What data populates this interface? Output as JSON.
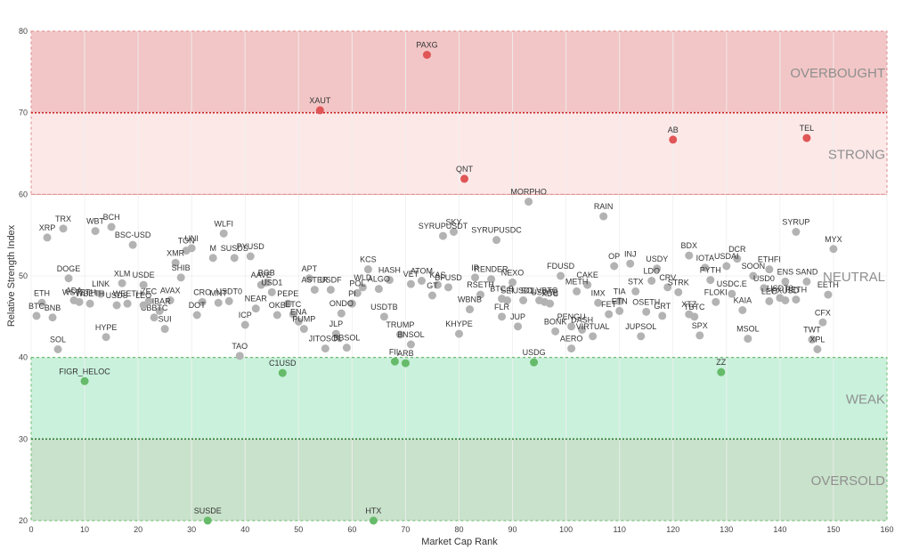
{
  "chart_data": {
    "type": "scatter",
    "title": "",
    "xlabel": "Market Cap Rank",
    "ylabel": "Relative Strength Index",
    "xlim": [
      0,
      160
    ],
    "ylim": [
      20,
      80
    ],
    "xticks": [
      0,
      10,
      20,
      30,
      40,
      50,
      60,
      70,
      80,
      90,
      100,
      110,
      120,
      130,
      140,
      150,
      160
    ],
    "yticks": [
      20,
      30,
      40,
      50,
      60,
      70,
      80
    ],
    "grid": true,
    "colors": {
      "overbought": "#e05555",
      "oversold": "#66bb6a",
      "neutral": "#b3b3b3",
      "overbought_band": "#f2c6c6",
      "strong_band": "#fde8e8",
      "weak_band": "#c9f1dc",
      "oversold_band": "#c9e2cb",
      "red_line": "#cc2222",
      "green_line": "#2e7d32"
    },
    "zones": [
      {
        "label": "OVERBOUGHT",
        "from": 70,
        "to": 80,
        "color": "#f2c6c6"
      },
      {
        "label": "STRONG",
        "from": 60,
        "to": 70,
        "color": "#fde8e8"
      },
      {
        "label": "NEUTRAL",
        "from": 40,
        "to": 60,
        "color": "#ffffff"
      },
      {
        "label": "WEAK",
        "from": 30,
        "to": 40,
        "color": "#c9f1dc"
      },
      {
        "label": "OVERSOLD",
        "from": 20,
        "to": 30,
        "color": "#c9e2cb"
      }
    ],
    "threshold_lines": [
      {
        "y": 70,
        "style": "dotted",
        "color": "#cc2222"
      },
      {
        "y": 60,
        "style": "dashed",
        "color": "#e08a8a"
      },
      {
        "y": 40,
        "style": "dashed",
        "color": "#66bb6a"
      },
      {
        "y": 30,
        "style": "dotted",
        "color": "#2e7d32"
      }
    ],
    "points": [
      {
        "label": "PAXG",
        "x": 74,
        "y": 77.1,
        "cat": "overbought"
      },
      {
        "label": "XAUT",
        "x": 54,
        "y": 70.3,
        "cat": "overbought"
      },
      {
        "label": "AB",
        "x": 120,
        "y": 66.7,
        "cat": "overbought"
      },
      {
        "label": "TEL",
        "x": 145,
        "y": 66.9,
        "cat": "overbought"
      },
      {
        "label": "QNT",
        "x": 81,
        "y": 61.9,
        "cat": "overbought"
      },
      {
        "label": "FIGR_HELOC",
        "x": 10,
        "y": 37.1,
        "cat": "oversold"
      },
      {
        "label": "C1USD",
        "x": 47,
        "y": 38.1,
        "cat": "oversold"
      },
      {
        "label": "FIL",
        "x": 68,
        "y": 39.5,
        "cat": "oversold"
      },
      {
        "label": "ARB",
        "x": 70,
        "y": 39.3,
        "cat": "oversold"
      },
      {
        "label": "USDG",
        "x": 94,
        "y": 39.4,
        "cat": "oversold"
      },
      {
        "label": "ZZ",
        "x": 129,
        "y": 38.2,
        "cat": "oversold"
      },
      {
        "label": "SUSDE",
        "x": 33,
        "y": 20.0,
        "cat": "oversold"
      },
      {
        "label": "HTX",
        "x": 64,
        "y": 20.0,
        "cat": "oversold"
      },
      {
        "label": "MORPHO",
        "x": 93,
        "y": 59.1,
        "cat": "neutral"
      },
      {
        "label": "RAIN",
        "x": 107,
        "y": 57.3,
        "cat": "neutral"
      },
      {
        "label": "TRX",
        "x": 6,
        "y": 55.8,
        "cat": "neutral"
      },
      {
        "label": "XRP",
        "x": 3,
        "y": 54.7,
        "cat": "neutral"
      },
      {
        "label": "WBT",
        "x": 12,
        "y": 55.5,
        "cat": "neutral"
      },
      {
        "label": "BCH",
        "x": 15,
        "y": 56.0,
        "cat": "neutral"
      },
      {
        "label": "BSC-USD",
        "x": 19,
        "y": 53.8,
        "cat": "neutral"
      },
      {
        "label": "WLFI",
        "x": 36,
        "y": 55.2,
        "cat": "neutral"
      },
      {
        "label": "UNI",
        "x": 30,
        "y": 53.4,
        "cat": "neutral"
      },
      {
        "label": "TON",
        "x": 29,
        "y": 53.1,
        "cat": "neutral"
      },
      {
        "label": "XMR",
        "x": 27,
        "y": 51.6,
        "cat": "neutral"
      },
      {
        "label": "M",
        "x": 34,
        "y": 52.2,
        "cat": "neutral"
      },
      {
        "label": "SUSDS",
        "x": 38,
        "y": 52.2,
        "cat": "neutral"
      },
      {
        "label": "PYUSD",
        "x": 41,
        "y": 52.4,
        "cat": "neutral"
      },
      {
        "label": "SHIB",
        "x": 28,
        "y": 49.8,
        "cat": "neutral"
      },
      {
        "label": "SKY",
        "x": 79,
        "y": 55.4,
        "cat": "neutral"
      },
      {
        "label": "SYRUPUSDT",
        "x": 77,
        "y": 54.9,
        "cat": "neutral"
      },
      {
        "label": "SYRUPUSDC",
        "x": 87,
        "y": 54.4,
        "cat": "neutral"
      },
      {
        "label": "SYRUP",
        "x": 143,
        "y": 55.4,
        "cat": "neutral"
      },
      {
        "label": "MYX",
        "x": 150,
        "y": 53.3,
        "cat": "neutral"
      },
      {
        "label": "BDX",
        "x": 123,
        "y": 52.5,
        "cat": "neutral"
      },
      {
        "label": "DCR",
        "x": 132,
        "y": 52.1,
        "cat": "neutral"
      },
      {
        "label": "USDAI",
        "x": 130,
        "y": 51.2,
        "cat": "neutral"
      },
      {
        "label": "ETHFI",
        "x": 138,
        "y": 50.8,
        "cat": "neutral"
      },
      {
        "label": "IOTA",
        "x": 126,
        "y": 51.0,
        "cat": "neutral"
      },
      {
        "label": "SOON",
        "x": 135,
        "y": 50.0,
        "cat": "neutral"
      },
      {
        "label": "OP",
        "x": 109,
        "y": 51.2,
        "cat": "neutral"
      },
      {
        "label": "INJ",
        "x": 112,
        "y": 51.5,
        "cat": "neutral"
      },
      {
        "label": "USDY",
        "x": 117,
        "y": 50.9,
        "cat": "neutral"
      },
      {
        "label": "PYTH",
        "x": 127,
        "y": 49.5,
        "cat": "neutral"
      },
      {
        "label": "ENS",
        "x": 141,
        "y": 49.3,
        "cat": "neutral"
      },
      {
        "label": "SAND",
        "x": 145,
        "y": 49.3,
        "cat": "neutral"
      },
      {
        "label": "USD0",
        "x": 137,
        "y": 48.5,
        "cat": "neutral"
      },
      {
        "label": "LDO",
        "x": 116,
        "y": 49.4,
        "cat": "neutral"
      },
      {
        "label": "CRV",
        "x": 119,
        "y": 48.6,
        "cat": "neutral"
      },
      {
        "label": "STX",
        "x": 113,
        "y": 48.1,
        "cat": "neutral"
      },
      {
        "label": "STRK",
        "x": 121,
        "y": 48.0,
        "cat": "neutral"
      },
      {
        "label": "EETH",
        "x": 149,
        "y": 47.7,
        "cat": "neutral"
      },
      {
        "label": "USDC.E",
        "x": 131,
        "y": 47.8,
        "cat": "neutral"
      },
      {
        "label": "FLOKI",
        "x": 128,
        "y": 46.8,
        "cat": "neutral"
      },
      {
        "label": "KAIA",
        "x": 133,
        "y": 45.8,
        "cat": "neutral"
      },
      {
        "label": "LEO",
        "x": 138,
        "y": 46.9,
        "cat": "neutral"
      },
      {
        "label": "USDT0",
        "x": 140,
        "y": 47.3,
        "cat": "neutral"
      },
      {
        "label": "FXUSD",
        "x": 141,
        "y": 47.0,
        "cat": "neutral"
      },
      {
        "label": "RETH",
        "x": 143,
        "y": 47.1,
        "cat": "neutral"
      },
      {
        "label": "TIA",
        "x": 110,
        "y": 46.9,
        "cat": "neutral"
      },
      {
        "label": "ETN",
        "x": 110,
        "y": 45.7,
        "cat": "neutral"
      },
      {
        "label": "OSETH",
        "x": 115,
        "y": 45.6,
        "cat": "neutral"
      },
      {
        "label": "GRT",
        "x": 118,
        "y": 45.1,
        "cat": "neutral"
      },
      {
        "label": "XTZ",
        "x": 123,
        "y": 45.3,
        "cat": "neutral"
      },
      {
        "label": "TBTC",
        "x": 124,
        "y": 45.0,
        "cat": "neutral"
      },
      {
        "label": "SPX",
        "x": 125,
        "y": 42.7,
        "cat": "neutral"
      },
      {
        "label": "MSOL",
        "x": 134,
        "y": 42.3,
        "cat": "neutral"
      },
      {
        "label": "CFX",
        "x": 148,
        "y": 44.3,
        "cat": "neutral"
      },
      {
        "label": "TWT",
        "x": 146,
        "y": 42.2,
        "cat": "neutral"
      },
      {
        "label": "XPL",
        "x": 147,
        "y": 41.0,
        "cat": "neutral"
      },
      {
        "label": "FDUSD",
        "x": 99,
        "y": 50.0,
        "cat": "neutral"
      },
      {
        "label": "CAKE",
        "x": 104,
        "y": 48.9,
        "cat": "neutral"
      },
      {
        "label": "METH",
        "x": 102,
        "y": 48.1,
        "cat": "neutral"
      },
      {
        "label": "IMX",
        "x": 106,
        "y": 46.7,
        "cat": "neutral"
      },
      {
        "label": "FET",
        "x": 108,
        "y": 45.3,
        "cat": "neutral"
      },
      {
        "label": "JUPSOL",
        "x": 114,
        "y": 42.6,
        "cat": "neutral"
      },
      {
        "label": "PENGU",
        "x": 101,
        "y": 43.8,
        "cat": "neutral"
      },
      {
        "label": "BONK",
        "x": 98,
        "y": 43.2,
        "cat": "neutral"
      },
      {
        "label": "DASH",
        "x": 103,
        "y": 43.4,
        "cat": "neutral"
      },
      {
        "label": "VIRTUAL",
        "x": 105,
        "y": 42.6,
        "cat": "neutral"
      },
      {
        "label": "AERO",
        "x": 101,
        "y": 41.1,
        "cat": "neutral"
      },
      {
        "label": "XDC",
        "x": 97,
        "y": 46.6,
        "cat": "neutral"
      },
      {
        "label": "SOLVBTC",
        "x": 95,
        "y": 47.0,
        "cat": "neutral"
      },
      {
        "label": "USDTB",
        "x": 96,
        "y": 46.8,
        "cat": "neutral"
      },
      {
        "label": "NEXO",
        "x": 90,
        "y": 49.2,
        "cat": "neutral"
      },
      {
        "label": "RENDER",
        "x": 86,
        "y": 49.6,
        "cat": "neutral"
      },
      {
        "label": "IP",
        "x": 83,
        "y": 49.8,
        "cat": "neutral"
      },
      {
        "label": "RSETH",
        "x": 84,
        "y": 47.7,
        "cat": "neutral"
      },
      {
        "label": "BTC.B",
        "x": 88,
        "y": 47.2,
        "cat": "neutral"
      },
      {
        "label": "SEI",
        "x": 89,
        "y": 47.0,
        "cat": "neutral"
      },
      {
        "label": "USD1",
        "x": 92,
        "y": 47.0,
        "cat": "neutral"
      },
      {
        "label": "FLR",
        "x": 88,
        "y": 45.0,
        "cat": "neutral"
      },
      {
        "label": "JUP",
        "x": 91,
        "y": 43.8,
        "cat": "neutral"
      },
      {
        "label": "WBNB",
        "x": 82,
        "y": 45.9,
        "cat": "neutral"
      },
      {
        "label": "KHYPE",
        "x": 80,
        "y": 42.9,
        "cat": "neutral"
      },
      {
        "label": "KAS",
        "x": 76,
        "y": 48.9,
        "cat": "neutral"
      },
      {
        "label": "BFUSD",
        "x": 78,
        "y": 48.6,
        "cat": "neutral"
      },
      {
        "label": "ATOM",
        "x": 73,
        "y": 49.4,
        "cat": "neutral"
      },
      {
        "label": "VET",
        "x": 71,
        "y": 49.0,
        "cat": "neutral"
      },
      {
        "label": "GT",
        "x": 75,
        "y": 47.6,
        "cat": "neutral"
      },
      {
        "label": "HASH",
        "x": 67,
        "y": 49.5,
        "cat": "neutral"
      },
      {
        "label": "KCS",
        "x": 63,
        "y": 50.8,
        "cat": "neutral"
      },
      {
        "label": "ALGO",
        "x": 65,
        "y": 48.4,
        "cat": "neutral"
      },
      {
        "label": "WLD",
        "x": 62,
        "y": 48.6,
        "cat": "neutral"
      },
      {
        "label": "POL",
        "x": 61,
        "y": 47.9,
        "cat": "neutral"
      },
      {
        "label": "PI",
        "x": 60,
        "y": 46.6,
        "cat": "neutral"
      },
      {
        "label": "ONDO",
        "x": 58,
        "y": 45.4,
        "cat": "neutral"
      },
      {
        "label": "USDTB",
        "x": 66,
        "y": 45.0,
        "cat": "neutral"
      },
      {
        "label": "TRUMP",
        "x": 69,
        "y": 42.8,
        "cat": "neutral"
      },
      {
        "label": "BNSOL",
        "x": 71,
        "y": 41.6,
        "cat": "neutral"
      },
      {
        "label": "JLP",
        "x": 57,
        "y": 42.9,
        "cat": "neutral"
      },
      {
        "label": "JITOSOL",
        "x": 55,
        "y": 41.1,
        "cat": "neutral"
      },
      {
        "label": "BBSOL",
        "x": 59,
        "y": 41.2,
        "cat": "neutral"
      },
      {
        "label": "APT",
        "x": 52,
        "y": 49.7,
        "cat": "neutral"
      },
      {
        "label": "ASTER",
        "x": 53,
        "y": 48.3,
        "cat": "neutral"
      },
      {
        "label": "USDF",
        "x": 56,
        "y": 48.3,
        "cat": "neutral"
      },
      {
        "label": "PEPE",
        "x": 48,
        "y": 46.6,
        "cat": "neutral"
      },
      {
        "label": "OKB",
        "x": 46,
        "y": 45.2,
        "cat": "neutral"
      },
      {
        "label": "ETC",
        "x": 49,
        "y": 45.3,
        "cat": "neutral"
      },
      {
        "label": "ENA",
        "x": 50,
        "y": 44.4,
        "cat": "neutral"
      },
      {
        "label": "PUMP",
        "x": 51,
        "y": 43.5,
        "cat": "neutral"
      },
      {
        "label": "BGB",
        "x": 44,
        "y": 49.2,
        "cat": "neutral"
      },
      {
        "label": "AAVE",
        "x": 43,
        "y": 48.9,
        "cat": "neutral"
      },
      {
        "label": "USD1",
        "x": 45,
        "y": 48.0,
        "cat": "neutral"
      },
      {
        "label": "NEAR",
        "x": 42,
        "y": 46.0,
        "cat": "neutral"
      },
      {
        "label": "ICP",
        "x": 40,
        "y": 44.0,
        "cat": "neutral"
      },
      {
        "label": "TAO",
        "x": 39,
        "y": 40.2,
        "cat": "neutral"
      },
      {
        "label": "USDT0",
        "x": 37,
        "y": 46.9,
        "cat": "neutral"
      },
      {
        "label": "MNT",
        "x": 35,
        "y": 46.7,
        "cat": "neutral"
      },
      {
        "label": "CRO",
        "x": 32,
        "y": 46.8,
        "cat": "neutral"
      },
      {
        "label": "DOT",
        "x": 31,
        "y": 45.2,
        "cat": "neutral"
      },
      {
        "label": "AVAX",
        "x": 26,
        "y": 47.0,
        "cat": "neutral"
      },
      {
        "label": "HBAR",
        "x": 24,
        "y": 45.7,
        "cat": "neutral"
      },
      {
        "label": "SUI",
        "x": 25,
        "y": 43.5,
        "cat": "neutral"
      },
      {
        "label": "CBBTC",
        "x": 23,
        "y": 44.9,
        "cat": "neutral"
      },
      {
        "label": "ZEC",
        "x": 22,
        "y": 46.9,
        "cat": "neutral"
      },
      {
        "label": "LEO",
        "x": 21,
        "y": 46.4,
        "cat": "neutral"
      },
      {
        "label": "USDE",
        "x": 21,
        "y": 48.9,
        "cat": "neutral"
      },
      {
        "label": "XLM",
        "x": 17,
        "y": 49.1,
        "cat": "neutral"
      },
      {
        "label": "WEETH",
        "x": 18,
        "y": 46.6,
        "cat": "neutral"
      },
      {
        "label": "USDS",
        "x": 16,
        "y": 46.4,
        "cat": "neutral"
      },
      {
        "label": "LINK",
        "x": 13,
        "y": 47.8,
        "cat": "neutral"
      },
      {
        "label": "WBETH",
        "x": 11,
        "y": 46.6,
        "cat": "neutral"
      },
      {
        "label": "WSTETH",
        "x": 9,
        "y": 46.8,
        "cat": "neutral"
      },
      {
        "label": "ADA",
        "x": 8,
        "y": 47.0,
        "cat": "neutral"
      },
      {
        "label": "DOGE",
        "x": 7,
        "y": 49.7,
        "cat": "neutral"
      },
      {
        "label": "ETH",
        "x": 2,
        "y": 46.7,
        "cat": "neutral"
      },
      {
        "label": "BTC",
        "x": 1,
        "y": 45.1,
        "cat": "neutral"
      },
      {
        "label": "BNB",
        "x": 4,
        "y": 44.9,
        "cat": "neutral"
      },
      {
        "label": "HYPE",
        "x": 14,
        "y": 42.5,
        "cat": "neutral"
      },
      {
        "label": "SOL",
        "x": 5,
        "y": 41.0,
        "cat": "neutral"
      }
    ]
  }
}
